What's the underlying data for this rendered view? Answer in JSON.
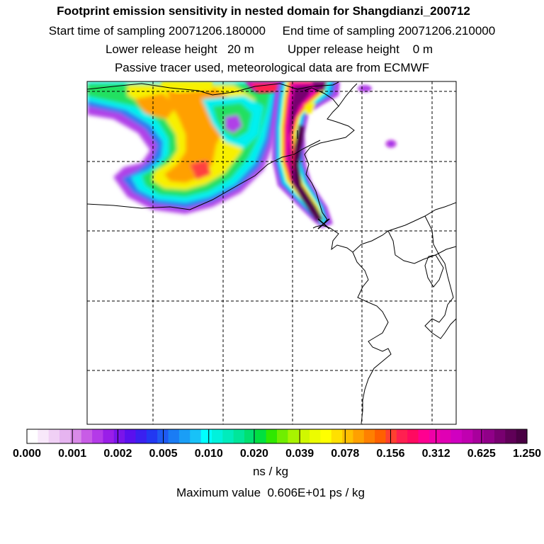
{
  "header": {
    "title": "Footprint emission sensitivity in nested domain for Shangdianzi_200712",
    "start_label": "Start time of sampling 20071206.180000",
    "end_label": "End time of sampling 20071206.210000",
    "lower_label": "Lower release height   20 m",
    "upper_label": "Upper release height    0 m",
    "tracer_line": "Passive tracer used, meteorological data are from ECMWF"
  },
  "colorbar": {
    "tick_labels": [
      "0.000",
      "0.001",
      "0.002",
      "0.005",
      "0.010",
      "0.020",
      "0.039",
      "0.078",
      "0.156",
      "0.312",
      "0.625",
      "1.250"
    ],
    "colors": [
      "#ffffff",
      "#f8e8fa",
      "#f0d0f5",
      "#e6b4f0",
      "#d98ae8",
      "#c85ce6",
      "#b43ae8",
      "#9a1ee8",
      "#7a14ea",
      "#5a10ee",
      "#3a20f0",
      "#2238f2",
      "#1e5af2",
      "#1a7cf4",
      "#1a9ef6",
      "#18c2f8",
      "#00ffff",
      "#00f2dc",
      "#00ecbc",
      "#00e69a",
      "#00e070",
      "#00e040",
      "#30e800",
      "#70ee00",
      "#a8f400",
      "#d0f800",
      "#ecfc00",
      "#ffff00",
      "#ffe000",
      "#ffc000",
      "#ffa000",
      "#ff8000",
      "#ff6000",
      "#ff4030",
      "#ff2050",
      "#ff0a60",
      "#ff0090",
      "#f000a8",
      "#e000b4",
      "#d000c0",
      "#c000b0",
      "#a8009c",
      "#900088",
      "#780070",
      "#600058",
      "#4a0044"
    ],
    "units": "ns / kg",
    "max_value": "Maximum value  0.606E+01 ps / kg"
  },
  "map": {
    "receptor_marker": "x-marker",
    "plume_colors": {
      "violet": "#b040e8",
      "blue": "#2a7af0",
      "cyan": "#00f0f0",
      "green": "#20e060",
      "yellow": "#f8f000",
      "orange": "#ffa000",
      "red": "#ff2050",
      "magenta": "#e000b0",
      "dark": "#500048"
    }
  }
}
